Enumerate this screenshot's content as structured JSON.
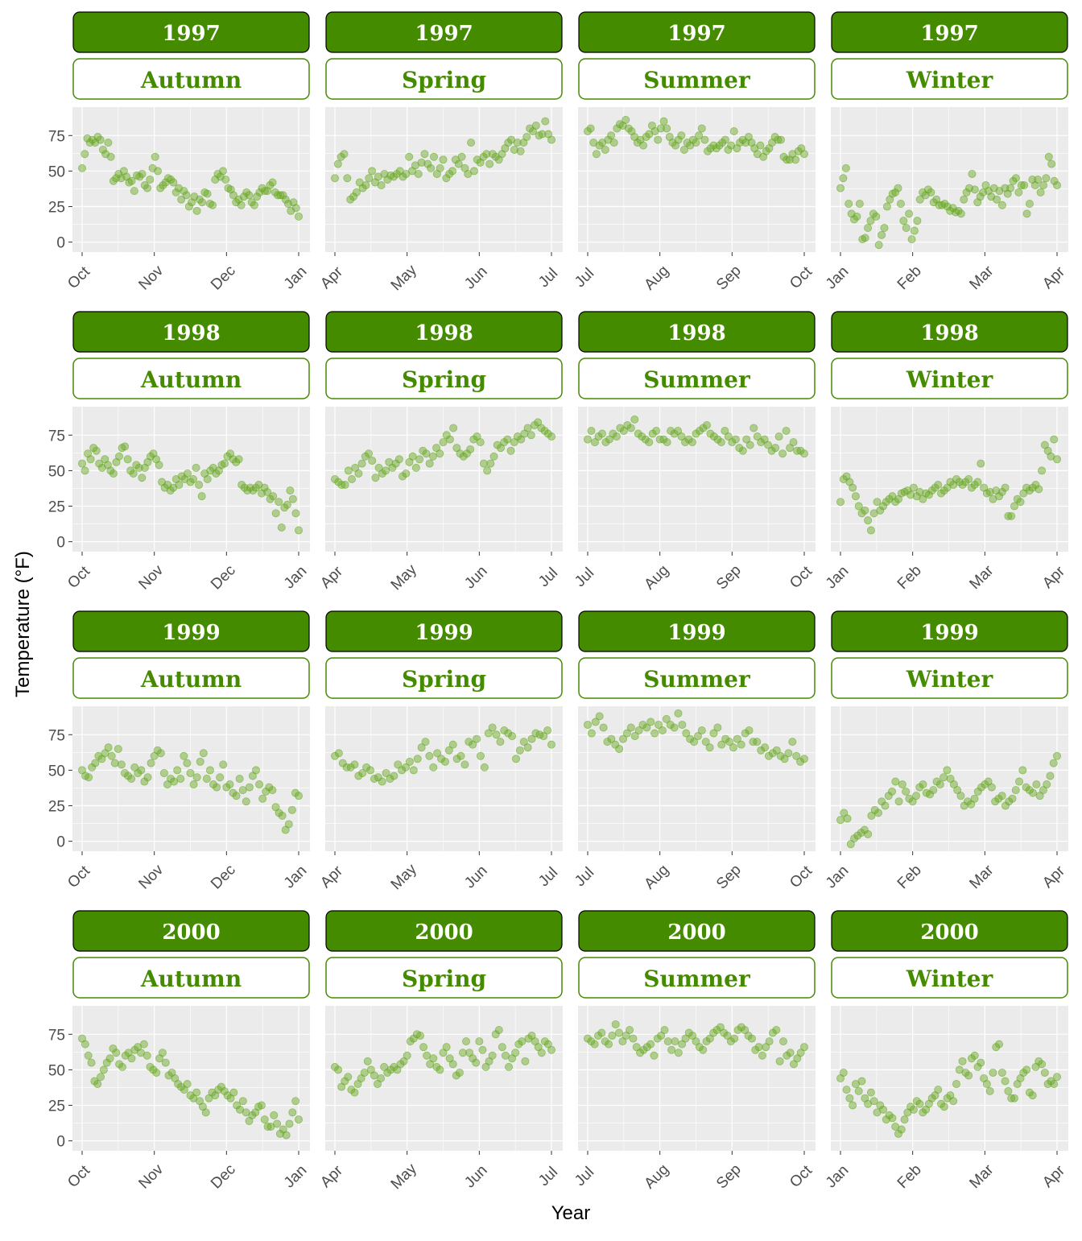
{
  "chart_data": {
    "type": "scatter",
    "title": "",
    "xlabel": "Year",
    "ylabel": "Temperature (°F)",
    "ylim": [
      -7,
      95
    ],
    "y_ticks": [
      0,
      25,
      50,
      75
    ],
    "grid": true,
    "legend": "none",
    "facet_rows": [
      "1997",
      "1998",
      "1999",
      "2000"
    ],
    "facet_cols": [
      "Autumn",
      "Spring",
      "Summer",
      "Winter"
    ],
    "x_tick_labels": {
      "Autumn": [
        "Oct",
        "Nov",
        "Dec",
        "Jan"
      ],
      "Spring": [
        "Apr",
        "May",
        "Jun",
        "Jul"
      ],
      "Summer": [
        "Jul",
        "Aug",
        "Sep",
        "Oct"
      ],
      "Winter": [
        "Jan",
        "Feb",
        "Mar",
        "Apr"
      ]
    },
    "colors": {
      "strip_fill": "#458B00",
      "strip_border": "#000000",
      "season_text": "#458B00",
      "season_border": "#458B00",
      "point": "#66A61E",
      "panel_bg": "#EBEBEB",
      "grid": "#FFFFFF"
    },
    "series": [
      {
        "year": "1997",
        "season": "Autumn",
        "values": [
          52,
          62,
          73,
          70,
          72,
          70,
          74,
          72,
          65,
          62,
          70,
          60,
          43,
          45,
          48,
          45,
          50,
          46,
          42,
          43,
          36,
          47,
          46,
          48,
          40,
          38,
          44,
          52,
          60,
          50,
          38,
          40,
          42,
          45,
          44,
          42,
          35,
          38,
          30,
          36,
          33,
          25,
          28,
          32,
          22,
          30,
          28,
          35,
          34,
          27,
          26,
          44,
          48,
          46,
          50,
          44,
          38,
          37,
          33,
          28,
          30,
          26,
          32,
          35,
          33,
          28,
          26,
          32,
          35,
          38,
          36,
          36,
          40,
          42,
          35,
          33,
          33,
          33,
          30,
          27,
          22,
          28,
          24,
          18
        ]
      },
      {
        "year": "1997",
        "season": "Spring",
        "values": [
          45,
          55,
          60,
          62,
          45,
          30,
          32,
          35,
          42,
          38,
          40,
          45,
          50,
          42,
          46,
          40,
          48,
          44,
          47,
          46,
          48,
          50,
          46,
          48,
          60,
          50,
          54,
          48,
          56,
          62,
          55,
          52,
          60,
          48,
          52,
          58,
          45,
          48,
          50,
          58,
          55,
          60,
          52,
          48,
          70,
          50,
          58,
          56,
          60,
          62,
          55,
          62,
          60,
          58,
          62,
          66,
          70,
          72,
          65,
          70,
          64,
          70,
          74,
          80,
          78,
          82,
          75,
          76,
          85,
          76,
          72
        ]
      },
      {
        "year": "1997",
        "season": "Summer",
        "values": [
          78,
          80,
          70,
          62,
          68,
          70,
          65,
          72,
          75,
          70,
          80,
          83,
          82,
          86,
          80,
          78,
          74,
          70,
          72,
          68,
          74,
          76,
          82,
          78,
          72,
          80,
          85,
          80,
          74,
          70,
          68,
          72,
          75,
          65,
          70,
          68,
          72,
          70,
          75,
          80,
          72,
          64,
          66,
          68,
          66,
          68,
          70,
          72,
          65,
          68,
          78,
          66,
          70,
          72,
          70,
          74,
          70,
          66,
          62,
          68,
          60,
          64,
          66,
          70,
          74,
          72,
          72,
          60,
          58,
          58,
          62,
          58,
          64,
          66,
          62
        ]
      },
      {
        "year": "1997",
        "season": "Winter",
        "values": [
          38,
          45,
          52,
          27,
          20,
          16,
          18,
          27,
          2,
          3,
          10,
          15,
          20,
          18,
          -2,
          5,
          10,
          25,
          30,
          34,
          35,
          38,
          27,
          15,
          10,
          20,
          2,
          8,
          15,
          30,
          35,
          33,
          37,
          35,
          28,
          30,
          26,
          26,
          27,
          25,
          22,
          24,
          21,
          22,
          20,
          30,
          35,
          38,
          48,
          37,
          28,
          32,
          35,
          40,
          36,
          32,
          38,
          30,
          36,
          26,
          38,
          34,
          38,
          43,
          45,
          35,
          40,
          40,
          20,
          27,
          44,
          40,
          44,
          35,
          40,
          45,
          60,
          55,
          43,
          40
        ]
      },
      {
        "year": "1998",
        "season": "Autumn",
        "values": [
          55,
          50,
          62,
          58,
          66,
          64,
          55,
          52,
          58,
          54,
          50,
          48,
          56,
          60,
          66,
          67,
          58,
          50,
          48,
          54,
          52,
          45,
          52,
          56,
          60,
          62,
          58,
          54,
          42,
          38,
          40,
          36,
          38,
          44,
          40,
          46,
          44,
          48,
          42,
          44,
          52,
          40,
          32,
          48,
          44,
          50,
          52,
          48,
          50,
          54,
          55,
          60,
          62,
          58,
          56,
          58,
          40,
          38,
          36,
          38,
          36,
          38,
          40,
          34,
          38,
          35,
          30,
          32,
          20,
          28,
          10,
          24,
          26,
          36,
          30,
          20,
          8
        ]
      },
      {
        "year": "1998",
        "season": "Spring",
        "values": [
          44,
          42,
          40,
          40,
          50,
          44,
          52,
          48,
          55,
          60,
          62,
          57,
          45,
          52,
          48,
          50,
          56,
          52,
          55,
          58,
          46,
          48,
          56,
          60,
          52,
          58,
          64,
          62,
          55,
          60,
          66,
          62,
          70,
          75,
          72,
          80,
          66,
          62,
          60,
          62,
          65,
          72,
          74,
          70,
          55,
          50,
          55,
          60,
          68,
          66,
          70,
          72,
          64,
          70,
          74,
          72,
          76,
          80,
          75,
          82,
          84,
          80,
          78,
          76,
          74
        ]
      },
      {
        "year": "1998",
        "season": "Summer",
        "values": [
          72,
          78,
          70,
          74,
          76,
          70,
          72,
          76,
          74,
          80,
          78,
          82,
          80,
          86,
          76,
          74,
          72,
          70,
          76,
          78,
          72,
          72,
          70,
          78,
          76,
          78,
          74,
          70,
          72,
          70,
          76,
          78,
          80,
          82,
          76,
          74,
          72,
          70,
          78,
          74,
          70,
          72,
          66,
          64,
          72,
          68,
          80,
          74,
          70,
          72,
          68,
          64,
          66,
          74,
          62,
          78,
          66,
          70,
          64,
          64,
          62
        ]
      },
      {
        "year": "1998",
        "season": "Winter",
        "values": [
          28,
          44,
          46,
          42,
          38,
          32,
          25,
          20,
          22,
          15,
          8,
          20,
          28,
          22,
          25,
          28,
          30,
          32,
          28,
          30,
          34,
          35,
          36,
          33,
          38,
          32,
          35,
          30,
          34,
          33,
          36,
          38,
          40,
          34,
          36,
          38,
          42,
          40,
          44,
          42,
          40,
          42,
          44,
          38,
          40,
          42,
          55,
          38,
          34,
          35,
          30,
          36,
          32,
          35,
          38,
          18,
          18,
          25,
          30,
          28,
          34,
          38,
          36,
          38,
          40,
          37,
          50,
          68,
          64,
          60,
          72,
          58
        ]
      },
      {
        "year": "1999",
        "season": "Autumn",
        "values": [
          50,
          46,
          45,
          52,
          55,
          60,
          58,
          62,
          66,
          60,
          55,
          65,
          54,
          48,
          46,
          44,
          52,
          48,
          50,
          42,
          45,
          55,
          60,
          64,
          62,
          48,
          40,
          44,
          42,
          50,
          44,
          60,
          55,
          48,
          40,
          45,
          56,
          62,
          44,
          50,
          40,
          38,
          45,
          54,
          38,
          40,
          34,
          32,
          44,
          36,
          28,
          38,
          46,
          50,
          40,
          30,
          35,
          38,
          36,
          24,
          20,
          18,
          8,
          12,
          22,
          34,
          32
        ]
      },
      {
        "year": "1999",
        "season": "Spring",
        "values": [
          60,
          62,
          55,
          52,
          52,
          54,
          46,
          48,
          52,
          50,
          44,
          45,
          42,
          48,
          44,
          46,
          54,
          50,
          52,
          56,
          50,
          58,
          66,
          70,
          60,
          52,
          62,
          58,
          56,
          64,
          68,
          58,
          60,
          54,
          70,
          68,
          72,
          60,
          52,
          76,
          80,
          75,
          70,
          78,
          76,
          74,
          58,
          64,
          70,
          66,
          72,
          76,
          75,
          74,
          78,
          68
        ]
      },
      {
        "year": "1999",
        "season": "Summer",
        "values": [
          82,
          76,
          84,
          88,
          80,
          70,
          72,
          68,
          65,
          72,
          76,
          80,
          74,
          78,
          82,
          80,
          84,
          76,
          82,
          78,
          86,
          82,
          80,
          90,
          82,
          76,
          72,
          70,
          74,
          78,
          70,
          66,
          76,
          80,
          68,
          72,
          70,
          66,
          72,
          68,
          76,
          78,
          70,
          70,
          64,
          66,
          60,
          62,
          64,
          60,
          58,
          62,
          70,
          60,
          56,
          58
        ]
      },
      {
        "year": "1999",
        "season": "Winter",
        "values": [
          15,
          20,
          16,
          -2,
          2,
          4,
          6,
          8,
          5,
          18,
          22,
          20,
          28,
          25,
          32,
          35,
          42,
          28,
          40,
          35,
          30,
          28,
          32,
          38,
          40,
          34,
          33,
          36,
          42,
          40,
          45,
          50,
          44,
          40,
          36,
          32,
          25,
          28,
          26,
          30,
          35,
          38,
          40,
          42,
          38,
          28,
          30,
          32,
          25,
          28,
          30,
          36,
          42,
          50,
          38,
          36,
          34,
          40,
          32,
          36,
          40,
          46,
          55,
          60
        ]
      },
      {
        "year": "2000",
        "season": "Autumn",
        "values": [
          72,
          68,
          60,
          55,
          42,
          40,
          45,
          50,
          55,
          58,
          65,
          62,
          54,
          52,
          60,
          62,
          58,
          64,
          66,
          62,
          68,
          60,
          52,
          50,
          48,
          58,
          62,
          55,
          46,
          48,
          44,
          40,
          38,
          36,
          40,
          32,
          30,
          34,
          28,
          24,
          20,
          30,
          34,
          32,
          36,
          38,
          35,
          32,
          30,
          34,
          25,
          22,
          28,
          20,
          14,
          18,
          20,
          24,
          25,
          15,
          10,
          10,
          18,
          12,
          5,
          8,
          4,
          12,
          20,
          28,
          15
        ]
      },
      {
        "year": "2000",
        "season": "Spring",
        "values": [
          52,
          50,
          38,
          42,
          45,
          36,
          34,
          40,
          44,
          48,
          56,
          50,
          46,
          40,
          44,
          52,
          48,
          50,
          52,
          50,
          54,
          56,
          60,
          70,
          72,
          75,
          74,
          66,
          60,
          54,
          58,
          52,
          50,
          62,
          66,
          58,
          54,
          46,
          48,
          62,
          70,
          62,
          58,
          55,
          70,
          64,
          52,
          56,
          60,
          75,
          78,
          66,
          60,
          52,
          58,
          62,
          68,
          70,
          56,
          72,
          74,
          70,
          66,
          62,
          70,
          68,
          64
        ]
      },
      {
        "year": "2000",
        "season": "Summer",
        "values": [
          72,
          70,
          68,
          74,
          76,
          70,
          68,
          74,
          82,
          76,
          70,
          74,
          78,
          72,
          66,
          62,
          64,
          66,
          68,
          60,
          72,
          74,
          78,
          70,
          64,
          70,
          62,
          68,
          72,
          76,
          74,
          70,
          66,
          64,
          70,
          72,
          76,
          78,
          80,
          76,
          74,
          70,
          72,
          78,
          80,
          78,
          74,
          72,
          64,
          66,
          60,
          66,
          70,
          76,
          78,
          56,
          70,
          60,
          62,
          54,
          58,
          62,
          66
        ]
      },
      {
        "year": "2000",
        "season": "Winter",
        "values": [
          44,
          48,
          36,
          30,
          25,
          40,
          35,
          42,
          30,
          26,
          34,
          28,
          20,
          25,
          22,
          15,
          18,
          16,
          10,
          5,
          8,
          15,
          20,
          24,
          22,
          28,
          26,
          20,
          22,
          26,
          30,
          32,
          36,
          26,
          24,
          30,
          32,
          28,
          40,
          50,
          56,
          48,
          46,
          58,
          60,
          52,
          55,
          44,
          40,
          35,
          48,
          66,
          68,
          48,
          42,
          35,
          30,
          30,
          40,
          44,
          48,
          50,
          34,
          32,
          52,
          56,
          54,
          48,
          40,
          42,
          40,
          45
        ]
      }
    ]
  }
}
